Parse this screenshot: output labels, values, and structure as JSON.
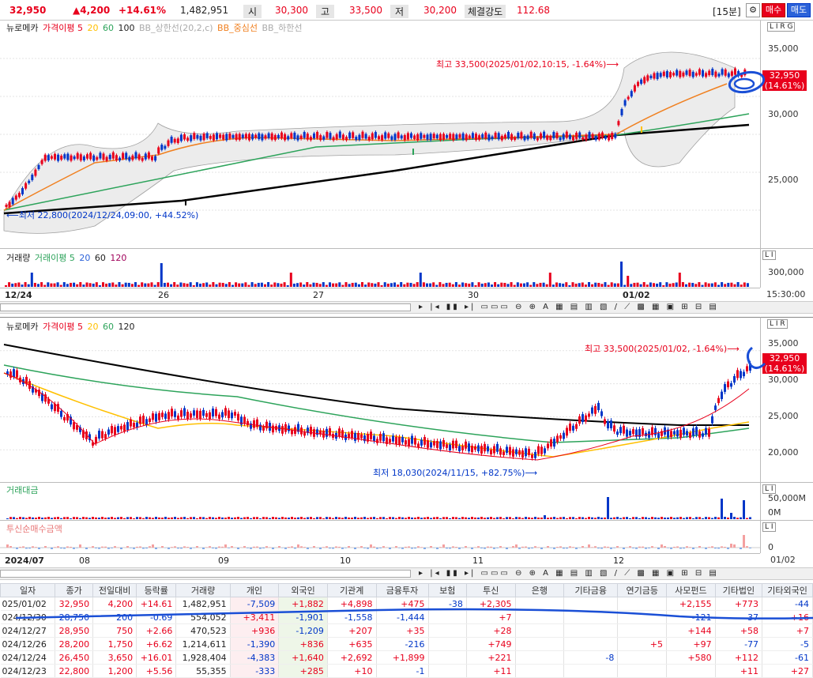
{
  "header": {
    "price": "32,950",
    "change": "▲4,200",
    "pct": "+14.61%",
    "volume": "1,482,951",
    "open_label": "시",
    "open": "30,300",
    "high_label": "고",
    "high": "33,500",
    "low_label": "저",
    "low": "30,200",
    "strength_label": "체결강도",
    "strength": "112.68",
    "interval": "[15분]",
    "buy": "매수",
    "sell": "매도",
    "gear": "⚙"
  },
  "chart1": {
    "legend": {
      "name": "뉴로메카",
      "ma_label": "가격이평 5",
      "ma20": "20",
      "ma60": "60",
      "ma100": "100",
      "bb_upper": "BB_상한선(20,2,c)",
      "bb_mid": "BB_중심선",
      "bb_lower": "BB_하한선"
    },
    "high_note": "최고 33,500(2025/01/02,10:15, -1.64%)⟶",
    "low_note": "⟵최저 22,800(2024/12/24,09:00, +44.52%)",
    "yticks": [
      "35,000",
      "30,000",
      "25,000"
    ],
    "price_tag": "32,950",
    "pct_tag": "(14.61%)",
    "lrg": "L I R G"
  },
  "vol1": {
    "legend": {
      "name": "거래량",
      "ma": "거래이평 5",
      "m20": "20",
      "m60": "60",
      "m120": "120"
    },
    "ytick": "300,000",
    "li": "L I"
  },
  "dates1": [
    "12/24",
    "26",
    "27",
    "30",
    "01/02"
  ],
  "time1": "15:30:00",
  "chart2": {
    "legend": {
      "name": "뉴로메카",
      "ma_label": "가격이평 5",
      "ma20": "20",
      "ma60": "60",
      "ma120": "120"
    },
    "high_note": "최고 33,500(2025/01/02, -1.64%)⟶",
    "low_note": "최저 18,030(2024/11/15, +82.75%)⟶",
    "yticks": [
      "35,000",
      "30,000",
      "25,000",
      "20,000"
    ],
    "price_tag": "32,950",
    "pct_tag": "(14.61%)",
    "lrg": "L I R"
  },
  "amt": {
    "legend": "거래대금",
    "ytick1": "50,000M",
    "ytick2": "0M",
    "li": "L I"
  },
  "net": {
    "legend": "투신순매수금액",
    "ytick": "0",
    "li": "L I"
  },
  "dates2": [
    "2024/07",
    "08",
    "09",
    "10",
    "11",
    "12",
    "01/02"
  ],
  "table": {
    "headers": [
      "일자",
      "종가",
      "전일대비",
      "등락률",
      "거래량",
      "개인",
      "외국인",
      "기관계",
      "금융투자",
      "보험",
      "투신",
      "은행",
      "기타금융",
      "연기금등",
      "사모펀드",
      "기타법인",
      "기타외국인"
    ],
    "rows": [
      [
        "025/01/02",
        "32,950",
        "4,200",
        "+14.61",
        "1,482,951",
        "-7,509",
        "+1,882",
        "+4,898",
        "+475",
        "-38",
        "+2,305",
        "",
        "",
        "",
        "+2,155",
        "+773",
        "-44"
      ],
      [
        "024/12/30",
        "28,750",
        "200",
        "-0.69",
        "554,052",
        "+3,411",
        "-1,901",
        "-1,558",
        "-1,444",
        "",
        "+7",
        "",
        "",
        "",
        "-121",
        "-37",
        "+16"
      ],
      [
        "024/12/27",
        "28,950",
        "750",
        "+2.66",
        "470,523",
        "+936",
        "-1,209",
        "+207",
        "+35",
        "",
        "+28",
        "",
        "",
        "",
        "+144",
        "+58",
        "+7"
      ],
      [
        "024/12/26",
        "28,200",
        "1,750",
        "+6.62",
        "1,214,611",
        "-1,390",
        "+836",
        "+635",
        "-216",
        "",
        "+749",
        "",
        "",
        "+5",
        "+97",
        "-77",
        "-5"
      ],
      [
        "024/12/24",
        "26,450",
        "3,650",
        "+16.01",
        "1,928,404",
        "-4,383",
        "+1,640",
        "+2,692",
        "+1,899",
        "",
        "+221",
        "",
        "-8",
        "",
        "+580",
        "+112",
        "-61"
      ],
      [
        "024/12/23",
        "22,800",
        "1,200",
        "+5.56",
        "55,355",
        "-333",
        "+285",
        "+10",
        "-1",
        "",
        "+11",
        "",
        "",
        "",
        "",
        "+11",
        "+27"
      ]
    ]
  },
  "colors": {
    "up": "#e8001c",
    "down": "#0036c8",
    "ma5": "#e8001c",
    "ma20": "#ffc000",
    "ma60": "#2ca35a",
    "ma120": "#000000",
    "bb": "#9a9a9a"
  }
}
